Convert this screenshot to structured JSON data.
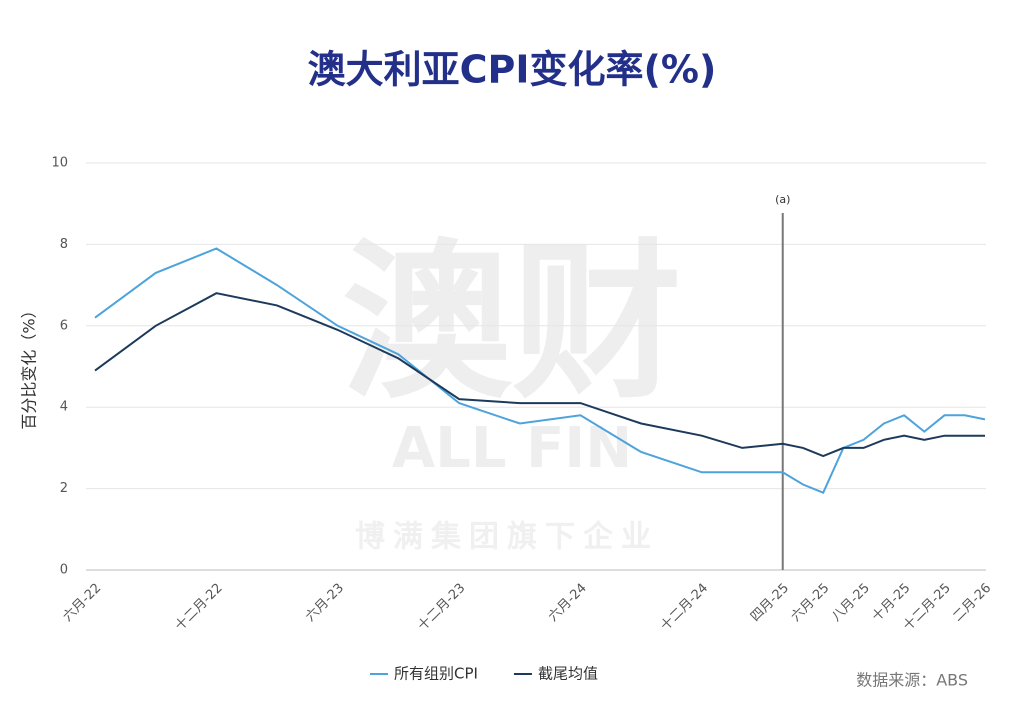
{
  "chart_data": {
    "type": "line",
    "title": "澳大利亚CPI变化率(%)",
    "y_label": "百分比变化（%）",
    "categories": [
      "六月-22",
      null,
      "十二月-22",
      null,
      "六月-23",
      null,
      "十二月-23",
      null,
      "六月-24",
      null,
      "十二月-24",
      null,
      "四月-25",
      null,
      "六月-25",
      null,
      "八月-25",
      null,
      "十月-25",
      null,
      "十二月-25",
      null,
      "二月-26"
    ],
    "series": [
      {
        "name": "所有组别CPI",
        "color": "#4da3dc",
        "values": [
          6.2,
          7.3,
          7.9,
          7.0,
          6.0,
          5.3,
          4.1,
          3.6,
          3.8,
          2.9,
          2.4,
          2.4,
          2.4,
          2.1,
          1.9,
          3.0,
          3.2,
          3.6,
          3.8,
          3.4,
          3.8,
          3.8,
          3.7
        ]
      },
      {
        "name": "截尾均值",
        "color": "#1d3a5c",
        "values": [
          4.9,
          6.0,
          6.8,
          6.5,
          5.9,
          5.2,
          4.2,
          4.1,
          4.1,
          3.6,
          3.3,
          3.0,
          3.1,
          3.0,
          2.8,
          3.0,
          3.0,
          3.2,
          3.3,
          3.2,
          3.3,
          3.3,
          3.3
        ]
      }
    ],
    "ylim": [
      0,
      10
    ],
    "yticks": [
      0,
      2,
      4,
      6,
      8,
      10
    ],
    "grid": true,
    "vline": {
      "at": "四月-25",
      "label": "(a)"
    },
    "legend": "bottom",
    "source": "数据来源：ABS",
    "watermark": {
      "logo": "澳财",
      "brand": "ALL FIN",
      "tagline": "博满集团旗下企业"
    }
  }
}
